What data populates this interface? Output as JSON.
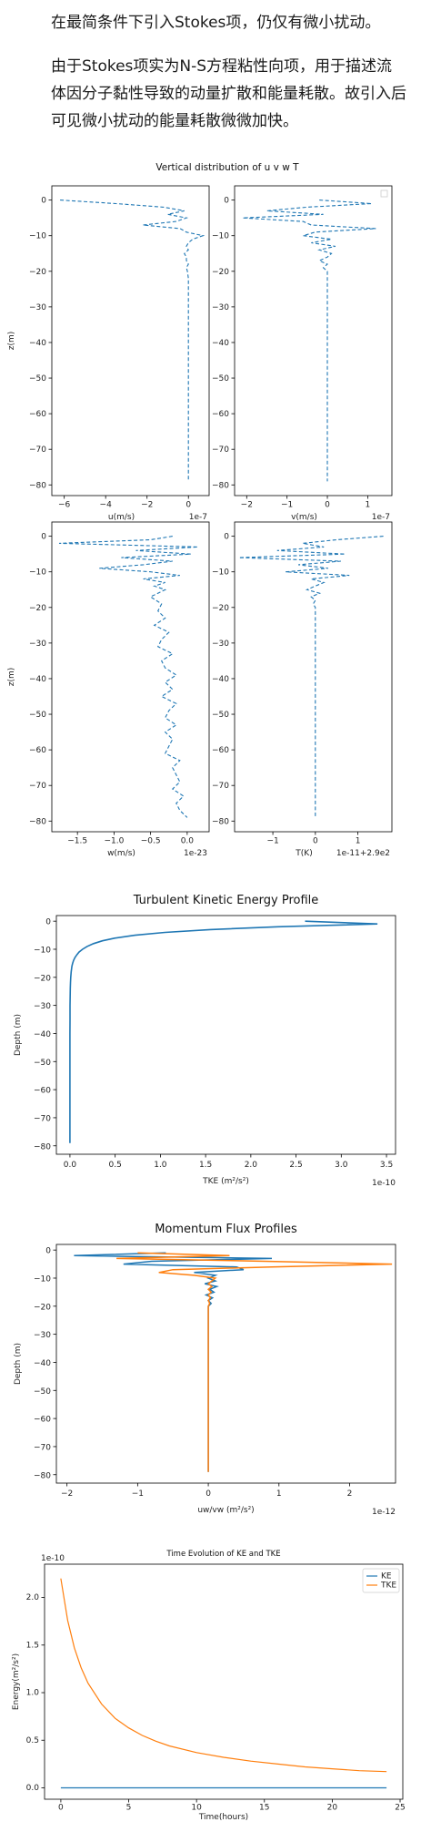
{
  "text": {
    "p1": "在最简条件下引入Stokes项，仍仅有微小扰动。",
    "p2": "由于Stokes项实为N-S方程粘性向项，用于描述流体因分子黏性导致的动量扩散和能量耗散。故引入后可见微小扰动的能量耗散微微加快。"
  },
  "colors": {
    "blue": "#1f77b4",
    "orange": "#ff7f0e"
  },
  "chart_data": [
    {
      "type": "line",
      "title": "Vertical distribution of u v w T",
      "style": "dashed",
      "panels": [
        {
          "xlabel": "u(m/s)",
          "ylabel": "z(m)",
          "offset_text": "1e-7",
          "xlim": [
            -6.6,
            1.0
          ],
          "ylim": [
            -83,
            4
          ],
          "xticks": [
            -6,
            -4,
            -2,
            0
          ],
          "yticks": [
            0,
            -10,
            -20,
            -30,
            -40,
            -50,
            -60,
            -70,
            -80
          ],
          "z": [
            0,
            -1,
            -2,
            -3,
            -4,
            -5,
            -6,
            -7,
            -8,
            -9,
            -10,
            -11,
            -12,
            -13,
            -14,
            -15,
            -16,
            -17,
            -18,
            -19,
            -20,
            -22,
            -25,
            -30,
            -40,
            -50,
            -60,
            -70,
            -79
          ],
          "values": [
            -6.2,
            -3.5,
            -1.2,
            -0.2,
            -1.0,
            -0.1,
            -0.6,
            -2.2,
            -0.4,
            -0.1,
            0.7,
            0.2,
            0.0,
            -0.1,
            0.0,
            -0.2,
            -0.1,
            -0.1,
            0.0,
            -0.1,
            -0.05,
            0.0,
            0.0,
            0.0,
            0.0,
            0.0,
            0.0,
            0.0,
            0.0
          ]
        },
        {
          "xlabel": "v(m/s)",
          "ylabel": "",
          "offset_text": "1e-7",
          "xlim": [
            -2.3,
            1.6
          ],
          "ylim": [
            -83,
            4
          ],
          "legend": "top-right (empty)",
          "xticks": [
            -2,
            -1,
            0,
            1
          ],
          "yticks": [
            0,
            -10,
            -20,
            -30,
            -40,
            -50,
            -60,
            -70,
            -80
          ],
          "z": [
            0,
            -1,
            -2,
            -3,
            -4,
            -5,
            -6,
            -7,
            -8,
            -9,
            -10,
            -11,
            -12,
            -13,
            -14,
            -15,
            -16,
            -17,
            -18,
            -19,
            -20,
            -25,
            -30,
            -40,
            -50,
            -60,
            -70,
            -79
          ],
          "values": [
            -0.2,
            1.1,
            -0.5,
            -1.5,
            -0.1,
            -2.1,
            -0.6,
            -0.4,
            1.2,
            -0.3,
            -0.6,
            0.1,
            -0.4,
            0.2,
            -0.2,
            0.1,
            0.0,
            -0.2,
            0.0,
            -0.1,
            0.0,
            0.0,
            0.0,
            0.0,
            0.0,
            0.0,
            0.0,
            0.0
          ]
        },
        {
          "xlabel": "w(m/s)",
          "ylabel": "z(m)",
          "offset_text": "1e-23",
          "xlim": [
            -1.85,
            0.3
          ],
          "ylim": [
            -83,
            4
          ],
          "xticks": [
            -1.5,
            -1.0,
            -0.5,
            0.0
          ],
          "yticks": [
            0,
            -10,
            -20,
            -30,
            -40,
            -50,
            -60,
            -70,
            -80
          ],
          "z": [
            0,
            -1,
            -2,
            -3,
            -4,
            -5,
            -6,
            -7,
            -8,
            -9,
            -10,
            -11,
            -12,
            -13,
            -14,
            -15,
            -17,
            -19,
            -21,
            -23,
            -25,
            -27,
            -29,
            -31,
            -33,
            -35,
            -37,
            -39,
            -41,
            -43,
            -45,
            -47,
            -49,
            -51,
            -53,
            -55,
            -57,
            -59,
            -61,
            -63,
            -65,
            -67,
            -69,
            -71,
            -73,
            -75,
            -77,
            -79
          ],
          "values": [
            -0.2,
            -0.5,
            -1.75,
            0.15,
            -0.7,
            0.05,
            -0.9,
            -0.2,
            -0.6,
            -1.2,
            -0.5,
            -0.1,
            -0.6,
            -0.3,
            -0.45,
            -0.3,
            -0.5,
            -0.35,
            -0.4,
            -0.3,
            -0.45,
            -0.25,
            -0.35,
            -0.4,
            -0.2,
            -0.35,
            -0.3,
            -0.15,
            -0.3,
            -0.2,
            -0.35,
            -0.15,
            -0.25,
            -0.3,
            -0.15,
            -0.3,
            -0.2,
            -0.25,
            -0.3,
            -0.1,
            -0.2,
            -0.15,
            -0.1,
            -0.2,
            -0.05,
            -0.15,
            -0.1,
            0.0
          ]
        },
        {
          "xlabel": "T(K)",
          "ylabel": "",
          "offset_text": "1e-11+2.9e2",
          "xlim": [
            -1.9,
            1.8
          ],
          "ylim": [
            -83,
            4
          ],
          "xticks": [
            -1,
            0,
            1
          ],
          "yticks": [
            0,
            -10,
            -20,
            -30,
            -40,
            -50,
            -60,
            -70,
            -80
          ],
          "z": [
            0,
            -1,
            -2,
            -3,
            -4,
            -5,
            -6,
            -7,
            -8,
            -9,
            -10,
            -11,
            -12,
            -13,
            -14,
            -15,
            -16,
            -17,
            -18,
            -19,
            -20,
            -25,
            -30,
            -40,
            -50,
            -60,
            -70,
            -79
          ],
          "values": [
            1.6,
            0.5,
            -0.3,
            0.2,
            -0.9,
            0.7,
            -1.8,
            0.6,
            -0.4,
            0.3,
            -0.7,
            0.8,
            -0.1,
            0.2,
            0.0,
            -0.2,
            0.1,
            -0.1,
            0.0,
            -0.05,
            0.0,
            0.0,
            0.0,
            0.0,
            0.0,
            0.0,
            0.0,
            0.0
          ]
        }
      ]
    },
    {
      "type": "line",
      "title": "Turbulent Kinetic Energy Profile",
      "xlabel": "TKE (m²/s²)",
      "ylabel": "Depth (m)",
      "offset_text": "1e-10",
      "xlim": [
        -0.15,
        3.6
      ],
      "ylim": [
        -83,
        2
      ],
      "xticks": [
        0.0,
        0.5,
        1.0,
        1.5,
        2.0,
        2.5,
        3.0,
        3.5
      ],
      "yticks": [
        0,
        -10,
        -20,
        -30,
        -40,
        -50,
        -60,
        -70,
        -80
      ],
      "z": [
        0,
        -1,
        -2,
        -3,
        -4,
        -5,
        -6,
        -7,
        -8,
        -9,
        -10,
        -11,
        -12,
        -13,
        -14,
        -15,
        -16,
        -18,
        -20,
        -22,
        -24,
        -26,
        -28,
        -30,
        -35,
        -40,
        -50,
        -60,
        -70,
        -79
      ],
      "values": [
        2.6,
        3.4,
        2.3,
        1.55,
        1.05,
        0.72,
        0.5,
        0.36,
        0.26,
        0.19,
        0.14,
        0.1,
        0.075,
        0.055,
        0.04,
        0.03,
        0.022,
        0.014,
        0.009,
        0.006,
        0.004,
        0.003,
        0.002,
        0.001,
        0.0005,
        0.0002,
        0.0,
        0.0,
        0.0,
        0.0
      ]
    },
    {
      "type": "line",
      "title": "Momentum Flux Profiles",
      "xlabel": "uw/vw (m²/s²)",
      "ylabel": "Depth (m)",
      "offset_text": "1e-12",
      "xlim": [
        -2.15,
        2.65
      ],
      "ylim": [
        -83,
        2
      ],
      "xticks": [
        -2,
        -1,
        0,
        1,
        2
      ],
      "yticks": [
        0,
        -10,
        -20,
        -30,
        -40,
        -50,
        -60,
        -70,
        -80
      ],
      "series": [
        {
          "color": "blue",
          "z": [
            -1,
            -2,
            -3,
            -4,
            -5,
            -6,
            -7,
            -8,
            -9,
            -10,
            -11,
            -12,
            -13,
            -14,
            -15,
            -16,
            -17,
            -18,
            -19,
            -20,
            -22,
            -25,
            -30,
            -40,
            -50,
            -60,
            -70,
            -79
          ],
          "values": [
            -0.6,
            -1.9,
            0.9,
            -0.8,
            -1.2,
            0.4,
            0.5,
            -0.2,
            0.1,
            0.0,
            0.1,
            -0.05,
            0.12,
            0.02,
            0.08,
            -0.03,
            0.06,
            0.0,
            0.04,
            0.0,
            0.0,
            0.0,
            0.0,
            0.0,
            0.0,
            0.0,
            0.0,
            0.0
          ]
        },
        {
          "color": "orange",
          "z": [
            -1,
            -2,
            -3,
            -4,
            -5,
            -6,
            -7,
            -8,
            -9,
            -10,
            -11,
            -12,
            -13,
            -14,
            -15,
            -16,
            -17,
            -18,
            -19,
            -20,
            -22,
            -25,
            -30,
            -40,
            -50,
            -60,
            -70,
            -79
          ],
          "values": [
            -1.0,
            0.3,
            -1.3,
            0.8,
            2.6,
            0.9,
            -0.5,
            -0.7,
            -0.2,
            0.1,
            0.05,
            0.0,
            0.05,
            0.0,
            0.04,
            0.0,
            0.03,
            0.0,
            0.02,
            0.0,
            0.0,
            0.0,
            0.0,
            0.0,
            0.0,
            0.0,
            0.0,
            0.0
          ]
        }
      ]
    },
    {
      "type": "line",
      "title": "Time Evolution of KE and TKE",
      "xlabel": "Time(hours)",
      "ylabel": "Energy(m²/s²)",
      "offset_text": "1e-10",
      "xlim": [
        -1.2,
        25.2
      ],
      "ylim": [
        -0.12,
        2.35
      ],
      "xticks": [
        0,
        5,
        10,
        15,
        20,
        25
      ],
      "yticks": [
        0.0,
        0.5,
        1.0,
        1.5,
        2.0
      ],
      "legend": "top-right",
      "series": [
        {
          "name": "KE",
          "color": "blue",
          "x": [
            0,
            24
          ],
          "values": [
            0.0,
            0.0
          ]
        },
        {
          "name": "TKE",
          "color": "orange",
          "x": [
            0,
            0.5,
            1,
            1.5,
            2,
            3,
            4,
            5,
            6,
            7,
            8,
            10,
            12,
            14,
            16,
            18,
            20,
            22,
            24
          ],
          "values": [
            2.2,
            1.76,
            1.47,
            1.26,
            1.1,
            0.88,
            0.73,
            0.63,
            0.55,
            0.49,
            0.44,
            0.37,
            0.32,
            0.28,
            0.25,
            0.22,
            0.2,
            0.18,
            0.17
          ]
        }
      ]
    }
  ]
}
